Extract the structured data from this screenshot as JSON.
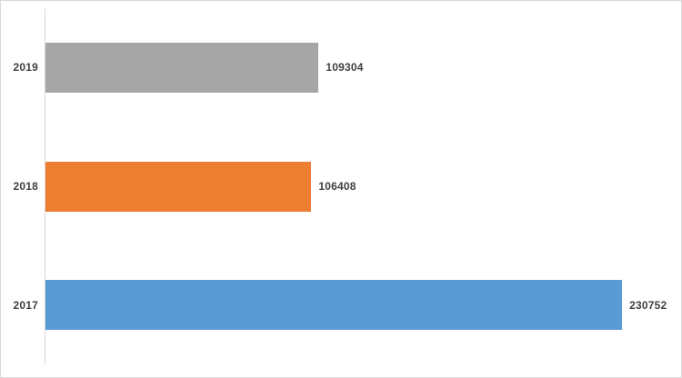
{
  "chart_data": {
    "type": "bar",
    "orientation": "horizontal",
    "title": "",
    "xlabel": "",
    "ylabel": "",
    "categories": [
      "2019",
      "2018",
      "2017"
    ],
    "values": [
      109304,
      106408,
      230752
    ],
    "value_labels": [
      "109304",
      "106408",
      "230752"
    ],
    "bar_colors": [
      "#A6A6A6",
      "#ED7D31",
      "#5B9BD5"
    ],
    "xlim": [
      0,
      250000
    ],
    "grid": false,
    "legend": false,
    "value_labels_shown": true,
    "axis_line_color": "#D9D9D9",
    "label_text_color": "#404040",
    "background_color": "#FFFFFF",
    "frame_border_color": "#D9D9D9"
  }
}
